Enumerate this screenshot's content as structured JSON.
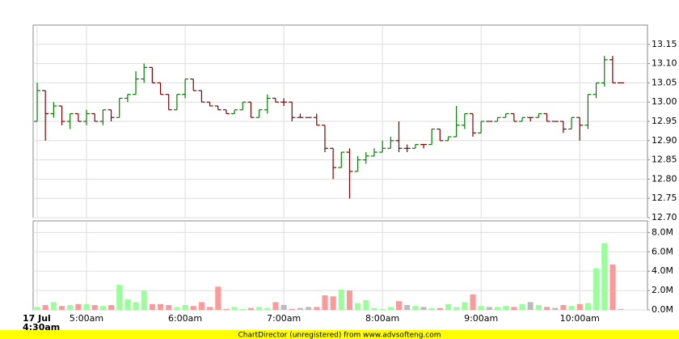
{
  "chart_data": [
    {
      "type": "ohlc",
      "date_label": "17 Jul",
      "categories": [
        "4:30am",
        null,
        null,
        null,
        null,
        null,
        "5:00am",
        null,
        null,
        null,
        null,
        null,
        null,
        null,
        null,
        null,
        null,
        null,
        "6:00am",
        null,
        null,
        null,
        null,
        null,
        null,
        null,
        null,
        null,
        null,
        null,
        "7:00am",
        null,
        null,
        null,
        null,
        null,
        null,
        null,
        null,
        null,
        null,
        null,
        "8:00am",
        null,
        null,
        null,
        null,
        null,
        null,
        null,
        null,
        null,
        null,
        null,
        "9:00am",
        null,
        null,
        null,
        null,
        null,
        null,
        null,
        null,
        null,
        null,
        null,
        "10:00am",
        null,
        null,
        null,
        null,
        null
      ],
      "open": [
        12.95,
        13.03,
        12.97,
        12.99,
        12.95,
        12.97,
        12.95,
        12.97,
        12.95,
        12.98,
        12.96,
        13.01,
        13.02,
        13.06,
        13.09,
        13.05,
        13.02,
        12.98,
        13.02,
        13.06,
        13.03,
        13.0,
        12.99,
        12.98,
        12.97,
        12.98,
        13.0,
        12.96,
        12.98,
        13.01,
        13.0,
        13.0,
        12.96,
        12.96,
        12.96,
        12.94,
        12.88,
        12.83,
        12.87,
        12.82,
        12.85,
        12.86,
        12.87,
        12.88,
        12.9,
        12.88,
        12.88,
        12.89,
        12.89,
        12.93,
        12.9,
        12.91,
        12.94,
        12.97,
        12.92,
        12.95,
        12.95,
        12.96,
        12.97,
        12.95,
        12.96,
        12.96,
        12.97,
        12.95,
        12.95,
        12.93,
        12.96,
        12.94,
        13.02,
        13.05,
        13.11,
        13.05
      ],
      "high": [
        13.05,
        13.03,
        13.0,
        12.99,
        12.97,
        12.97,
        12.98,
        12.97,
        12.98,
        12.98,
        13.01,
        13.02,
        13.08,
        13.1,
        13.09,
        13.05,
        13.02,
        13.02,
        13.06,
        13.06,
        13.03,
        13.0,
        12.99,
        12.98,
        12.98,
        13.0,
        13.0,
        12.98,
        13.02,
        13.01,
        13.01,
        13.0,
        12.97,
        12.96,
        12.97,
        12.94,
        12.88,
        12.87,
        12.88,
        12.86,
        12.87,
        12.88,
        12.9,
        12.91,
        12.95,
        12.89,
        12.89,
        12.89,
        12.93,
        12.93,
        12.91,
        12.99,
        12.97,
        12.97,
        12.95,
        12.95,
        12.96,
        12.97,
        12.97,
        12.96,
        12.96,
        12.97,
        12.97,
        12.95,
        12.95,
        12.96,
        12.96,
        13.02,
        13.05,
        13.12,
        13.12,
        13.05
      ],
      "low": [
        12.95,
        12.9,
        12.96,
        12.94,
        12.93,
        12.95,
        12.94,
        12.95,
        12.94,
        12.95,
        12.96,
        13.0,
        13.02,
        13.05,
        13.05,
        13.02,
        12.98,
        12.98,
        13.01,
        13.03,
        13.0,
        12.99,
        12.98,
        12.97,
        12.97,
        12.98,
        12.96,
        12.96,
        12.97,
        13.0,
        12.99,
        12.95,
        12.96,
        12.96,
        12.94,
        12.87,
        12.8,
        12.83,
        12.75,
        12.82,
        12.84,
        12.86,
        12.87,
        12.88,
        12.87,
        12.87,
        12.88,
        12.88,
        12.89,
        12.9,
        12.9,
        12.91,
        12.93,
        12.91,
        12.92,
        12.95,
        12.95,
        12.96,
        12.95,
        12.95,
        12.95,
        12.96,
        12.95,
        12.95,
        12.92,
        12.93,
        12.9,
        12.93,
        13.01,
        13.04,
        13.05,
        13.05
      ],
      "close": [
        13.03,
        12.97,
        12.99,
        12.95,
        12.97,
        12.95,
        12.97,
        12.95,
        12.98,
        12.96,
        13.01,
        13.02,
        13.06,
        13.09,
        13.05,
        13.02,
        12.98,
        13.02,
        13.06,
        13.03,
        13.0,
        12.99,
        12.98,
        12.97,
        12.98,
        13.0,
        12.96,
        12.98,
        13.01,
        13.0,
        13.0,
        12.96,
        12.96,
        12.96,
        12.94,
        12.88,
        12.83,
        12.87,
        12.82,
        12.85,
        12.86,
        12.87,
        12.88,
        12.9,
        12.88,
        12.88,
        12.89,
        12.89,
        12.93,
        12.9,
        12.91,
        12.94,
        12.97,
        12.92,
        12.95,
        12.95,
        12.96,
        12.97,
        12.95,
        12.96,
        12.96,
        12.97,
        12.95,
        12.95,
        12.93,
        12.96,
        12.94,
        13.02,
        13.05,
        13.11,
        13.05,
        13.05
      ],
      "up_color": "#008000",
      "down_color": "#800000",
      "ylim": [
        12.7,
        13.2
      ],
      "yticks": [
        {
          "value": 12.7,
          "label": "12.70"
        },
        12.75,
        {
          "value": 12.8,
          "label": "12.80"
        },
        12.85,
        {
          "value": 12.9,
          "label": "12.90"
        },
        12.95,
        {
          "value": 13.0,
          "label": "13.00"
        },
        13.05,
        {
          "value": 13.1,
          "label": "13.10"
        },
        13.15
      ],
      "grid": true
    },
    {
      "type": "bar",
      "values": [
        300000,
        500000,
        800000,
        400000,
        500000,
        600000,
        600000,
        500000,
        400000,
        500000,
        2600000,
        1100000,
        800000,
        2000000,
        600000,
        600000,
        500000,
        300000,
        500000,
        400000,
        800000,
        300000,
        2400000,
        100000,
        300000,
        100000,
        200000,
        300000,
        200000,
        800000,
        500000,
        100000,
        200000,
        300000,
        300000,
        1500000,
        1400000,
        2100000,
        2000000,
        700000,
        1000000,
        200000,
        100000,
        300000,
        900000,
        500000,
        400000,
        300000,
        200000,
        200000,
        600000,
        300000,
        800000,
        1600000,
        400000,
        300000,
        300000,
        400000,
        300000,
        600000,
        800000,
        500000,
        300000,
        200000,
        500000,
        400000,
        600000,
        700000,
        4300000,
        6900000,
        4700000,
        100000
      ],
      "up_color": "#99ff99",
      "down_color": "#ff9999",
      "flat_color": "#bbbbbb",
      "ylim": [
        0,
        9200000
      ],
      "yticks": [
        {
          "value": 0,
          "label": "0.0M"
        },
        {
          "value": 2000000,
          "label": "2.0M"
        },
        {
          "value": 4000000,
          "label": "4.0M"
        },
        {
          "value": 6000000,
          "label": "6.0M"
        },
        {
          "value": 8000000,
          "label": "8.0M"
        }
      ],
      "grid": true
    }
  ],
  "footer": "ChartDirector (unregistered) from www.advsofteng.com"
}
